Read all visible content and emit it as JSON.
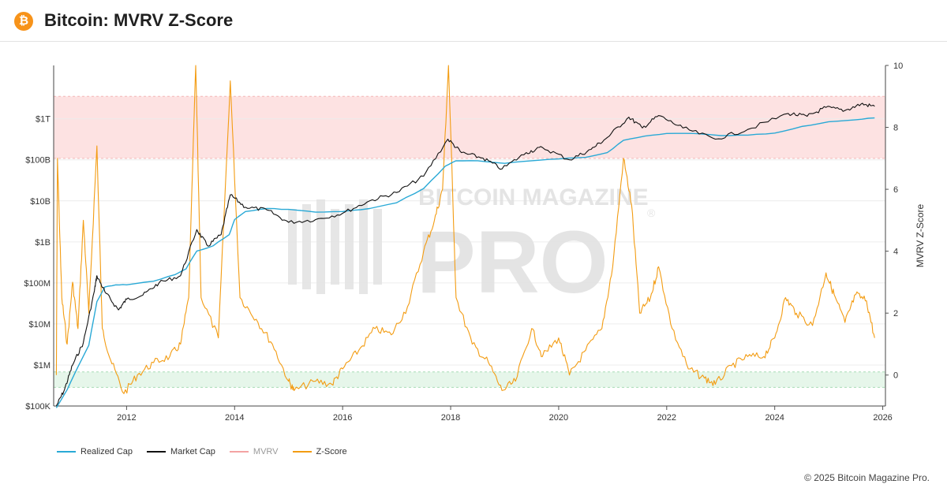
{
  "header": {
    "title": "Bitcoin: MVRV Z-Score",
    "logo_glyph": "₿",
    "logo_icon": "bitcoin-logo-icon"
  },
  "watermark": {
    "line1": "BITCOIN MAGAZINE",
    "line2": "PRO",
    "mark": "®"
  },
  "legend": {
    "realized_cap": "Realized Cap",
    "market_cap": "Market Cap",
    "mvrv": "MVRV",
    "z_score": "Z-Score"
  },
  "footer": {
    "copyright": "© 2025 Bitcoin Magazine Pro."
  },
  "colors": {
    "realized_cap": "#29a9d6",
    "market_cap": "#111111",
    "mvrv": "#f4a3a3",
    "z_score": "#f39c12",
    "red_band": "#fde2e2",
    "green_band": "#e6f6ea"
  },
  "chart_data": {
    "type": "line",
    "title": "Bitcoin: MVRV Z-Score",
    "xlabel": "",
    "ylabel_left": "",
    "ylabel_right": "MVRV Z-Score",
    "x_ticks": [
      "2012",
      "2014",
      "2016",
      "2018",
      "2020",
      "2022",
      "2024",
      "2026"
    ],
    "x_range": [
      2010.65,
      2026.05
    ],
    "y_left_scale": "log",
    "y_left_ticks": [
      "$100K",
      "$1M",
      "$10M",
      "$100M",
      "$1B",
      "$10B",
      "$100B",
      "$1T"
    ],
    "y_left_tick_values": [
      100000,
      1000000,
      10000000,
      100000000,
      1000000000,
      10000000000,
      100000000000,
      1000000000000
    ],
    "y_left_range": [
      100000,
      20000000000000
    ],
    "y_right_ticks": [
      "0",
      "2",
      "4",
      "6",
      "8",
      "10"
    ],
    "y_right_tick_values": [
      0,
      2,
      4,
      6,
      8,
      10
    ],
    "y_right_range": [
      -1.0,
      10.0
    ],
    "bands": [
      {
        "name": "high",
        "from": 7.0,
        "to": 9.0,
        "axis": "right"
      },
      {
        "name": "low",
        "from": -0.4,
        "to": 0.1,
        "axis": "right"
      }
    ],
    "grid": true,
    "legend_position": "bottom-left",
    "series": [
      {
        "name": "Realized Cap",
        "axis": "left",
        "points": [
          [
            2010.7,
            90000
          ],
          [
            2010.9,
            250000
          ],
          [
            2011.1,
            900000
          ],
          [
            2011.3,
            3000000
          ],
          [
            2011.45,
            35000000
          ],
          [
            2011.6,
            80000000
          ],
          [
            2011.8,
            90000000
          ],
          [
            2012.0,
            90000000
          ],
          [
            2012.5,
            110000000
          ],
          [
            2012.9,
            160000000
          ],
          [
            2013.1,
            220000000
          ],
          [
            2013.3,
            600000000
          ],
          [
            2013.6,
            800000000
          ],
          [
            2013.9,
            1500000000
          ],
          [
            2014.0,
            3500000000
          ],
          [
            2014.2,
            5500000000
          ],
          [
            2014.6,
            6500000000
          ],
          [
            2015.0,
            6200000000
          ],
          [
            2015.5,
            5300000000
          ],
          [
            2016.0,
            5500000000
          ],
          [
            2016.5,
            6500000000
          ],
          [
            2017.0,
            9000000000
          ],
          [
            2017.5,
            20000000000
          ],
          [
            2017.9,
            70000000000
          ],
          [
            2018.1,
            95000000000
          ],
          [
            2018.5,
            95000000000
          ],
          [
            2019.0,
            82000000000
          ],
          [
            2019.5,
            95000000000
          ],
          [
            2020.0,
            105000000000
          ],
          [
            2020.5,
            115000000000
          ],
          [
            2020.9,
            150000000000
          ],
          [
            2021.2,
            300000000000
          ],
          [
            2021.6,
            380000000000
          ],
          [
            2022.0,
            440000000000
          ],
          [
            2022.5,
            440000000000
          ],
          [
            2023.0,
            390000000000
          ],
          [
            2023.5,
            400000000000
          ],
          [
            2024.0,
            450000000000
          ],
          [
            2024.5,
            650000000000
          ],
          [
            2025.0,
            850000000000
          ],
          [
            2025.5,
            950000000000
          ],
          [
            2025.85,
            1050000000000
          ]
        ]
      },
      {
        "name": "Market Cap",
        "axis": "left",
        "points": [
          [
            2010.7,
            100000
          ],
          [
            2010.85,
            250000
          ],
          [
            2011.0,
            1000000
          ],
          [
            2011.2,
            3500000
          ],
          [
            2011.4,
            60000000
          ],
          [
            2011.45,
            150000000
          ],
          [
            2011.6,
            60000000
          ],
          [
            2011.85,
            22000000
          ],
          [
            2012.0,
            40000000
          ],
          [
            2012.3,
            50000000
          ],
          [
            2012.6,
            100000000
          ],
          [
            2013.0,
            150000000
          ],
          [
            2013.3,
            2000000000
          ],
          [
            2013.5,
            800000000
          ],
          [
            2013.75,
            1500000000
          ],
          [
            2013.92,
            14000000000
          ],
          [
            2014.2,
            7000000000
          ],
          [
            2014.6,
            6000000000
          ],
          [
            2015.0,
            3000000000
          ],
          [
            2015.5,
            3500000000
          ],
          [
            2016.0,
            5000000000
          ],
          [
            2016.5,
            10000000000
          ],
          [
            2017.0,
            16000000000
          ],
          [
            2017.5,
            40000000000
          ],
          [
            2017.95,
            320000000000
          ],
          [
            2018.2,
            150000000000
          ],
          [
            2018.6,
            110000000000
          ],
          [
            2018.95,
            60000000000
          ],
          [
            2019.4,
            150000000000
          ],
          [
            2019.7,
            200000000000
          ],
          [
            2020.2,
            100000000000
          ],
          [
            2020.6,
            180000000000
          ],
          [
            2020.9,
            350000000000
          ],
          [
            2021.3,
            1100000000000
          ],
          [
            2021.55,
            600000000000
          ],
          [
            2021.85,
            1200000000000
          ],
          [
            2022.3,
            600000000000
          ],
          [
            2022.9,
            320000000000
          ],
          [
            2023.5,
            550000000000
          ],
          [
            2024.25,
            1350000000000
          ],
          [
            2024.6,
            1150000000000
          ],
          [
            2024.95,
            1900000000000
          ],
          [
            2025.3,
            1600000000000
          ],
          [
            2025.6,
            2300000000000
          ],
          [
            2025.85,
            2000000000000
          ]
        ]
      },
      {
        "name": "Z-Score",
        "axis": "right",
        "points": [
          [
            2010.7,
            0.0
          ],
          [
            2010.72,
            7.0
          ],
          [
            2010.8,
            2.5
          ],
          [
            2010.9,
            1.0
          ],
          [
            2011.0,
            3.0
          ],
          [
            2011.1,
            1.5
          ],
          [
            2011.2,
            5.0
          ],
          [
            2011.3,
            2.0
          ],
          [
            2011.45,
            7.4
          ],
          [
            2011.55,
            1.5
          ],
          [
            2011.7,
            0.5
          ],
          [
            2011.95,
            -0.6
          ],
          [
            2012.2,
            0.0
          ],
          [
            2012.5,
            0.4
          ],
          [
            2012.8,
            0.6
          ],
          [
            2013.0,
            1.0
          ],
          [
            2013.15,
            2.5
          ],
          [
            2013.28,
            10.0
          ],
          [
            2013.38,
            2.5
          ],
          [
            2013.7,
            1.2
          ],
          [
            2013.92,
            9.5
          ],
          [
            2014.1,
            2.5
          ],
          [
            2014.4,
            1.8
          ],
          [
            2014.7,
            1.0
          ],
          [
            2015.0,
            -0.2
          ],
          [
            2015.1,
            -0.5
          ],
          [
            2015.5,
            -0.2
          ],
          [
            2015.8,
            -0.3
          ],
          [
            2016.0,
            0.2
          ],
          [
            2016.3,
            0.8
          ],
          [
            2016.6,
            1.5
          ],
          [
            2016.9,
            1.3
          ],
          [
            2017.2,
            2.2
          ],
          [
            2017.5,
            4.0
          ],
          [
            2017.7,
            5.0
          ],
          [
            2017.85,
            6.0
          ],
          [
            2017.96,
            10.0
          ],
          [
            2018.1,
            2.5
          ],
          [
            2018.4,
            1.0
          ],
          [
            2018.7,
            0.4
          ],
          [
            2018.95,
            -0.5
          ],
          [
            2019.2,
            -0.2
          ],
          [
            2019.5,
            1.5
          ],
          [
            2019.7,
            0.6
          ],
          [
            2020.0,
            1.2
          ],
          [
            2020.2,
            0.0
          ],
          [
            2020.5,
            0.8
          ],
          [
            2020.8,
            1.5
          ],
          [
            2021.0,
            3.5
          ],
          [
            2021.2,
            7.0
          ],
          [
            2021.35,
            5.5
          ],
          [
            2021.5,
            2.0
          ],
          [
            2021.7,
            2.5
          ],
          [
            2021.85,
            3.5
          ],
          [
            2022.1,
            1.5
          ],
          [
            2022.4,
            0.2
          ],
          [
            2022.7,
            -0.1
          ],
          [
            2022.9,
            -0.3
          ],
          [
            2023.2,
            0.3
          ],
          [
            2023.5,
            0.6
          ],
          [
            2023.8,
            0.6
          ],
          [
            2024.0,
            1.2
          ],
          [
            2024.2,
            2.5
          ],
          [
            2024.4,
            2.0
          ],
          [
            2024.7,
            1.6
          ],
          [
            2024.95,
            3.3
          ],
          [
            2025.1,
            2.6
          ],
          [
            2025.3,
            1.7
          ],
          [
            2025.5,
            2.6
          ],
          [
            2025.7,
            2.4
          ],
          [
            2025.85,
            1.2
          ]
        ]
      }
    ]
  }
}
